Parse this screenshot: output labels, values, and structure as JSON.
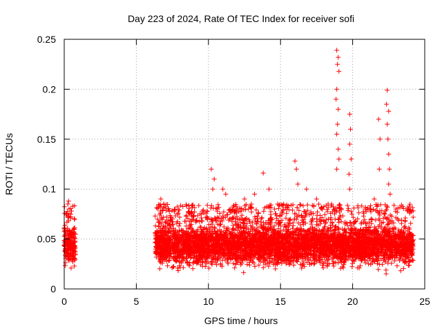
{
  "chart_data": {
    "type": "scatter",
    "title": "Day 223 of 2024, Rate Of TEC Index for receiver sofi",
    "xlabel": "GPS time / hours",
    "ylabel": "ROTI / TECUs",
    "xlim": [
      0,
      25
    ],
    "ylim": [
      0,
      0.25
    ],
    "xticks": [
      "0",
      "5",
      "10",
      "15",
      "20",
      "25"
    ],
    "yticks": [
      "0",
      "0.05",
      "0.1",
      "0.15",
      "0.2",
      "0.25"
    ],
    "grid": true,
    "marker": "+",
    "marker_color": "#ff0000",
    "series_name": "ROTI",
    "segments": [
      {
        "x": [
          0.0,
          0.8
        ],
        "y": [
          0.015,
          0.07
        ]
      },
      {
        "x": [
          6.3,
          24.2
        ],
        "y": [
          0.012,
          0.07
        ]
      }
    ],
    "peak_points": [
      [
        0.3,
        0.088
      ],
      [
        0.25,
        0.085
      ],
      [
        0.5,
        0.078
      ],
      [
        6.7,
        0.09
      ],
      [
        6.9,
        0.085
      ],
      [
        7.2,
        0.08
      ],
      [
        10.2,
        0.12
      ],
      [
        10.4,
        0.11
      ],
      [
        10.3,
        0.1
      ],
      [
        11.0,
        0.1
      ],
      [
        11.2,
        0.095
      ],
      [
        12.5,
        0.09
      ],
      [
        13.2,
        0.095
      ],
      [
        13.8,
        0.116
      ],
      [
        14.2,
        0.1
      ],
      [
        14.8,
        0.085
      ],
      [
        16.0,
        0.128
      ],
      [
        16.1,
        0.12
      ],
      [
        16.2,
        0.105
      ],
      [
        16.8,
        0.1
      ],
      [
        17.5,
        0.09
      ],
      [
        18.3,
        0.085
      ],
      [
        18.9,
        0.239
      ],
      [
        19.0,
        0.232
      ],
      [
        18.95,
        0.225
      ],
      [
        19.05,
        0.218
      ],
      [
        18.9,
        0.2
      ],
      [
        18.85,
        0.19
      ],
      [
        19.0,
        0.18
      ],
      [
        18.95,
        0.165
      ],
      [
        18.9,
        0.155
      ],
      [
        19.0,
        0.14
      ],
      [
        19.05,
        0.13
      ],
      [
        18.9,
        0.12
      ],
      [
        19.8,
        0.175
      ],
      [
        19.85,
        0.16
      ],
      [
        19.8,
        0.145
      ],
      [
        19.9,
        0.13
      ],
      [
        19.75,
        0.115
      ],
      [
        19.8,
        0.1
      ],
      [
        21.8,
        0.17
      ],
      [
        21.9,
        0.15
      ],
      [
        21.85,
        0.12
      ],
      [
        22.4,
        0.199
      ],
      [
        22.35,
        0.185
      ],
      [
        22.5,
        0.178
      ],
      [
        22.4,
        0.165
      ],
      [
        22.45,
        0.15
      ],
      [
        22.5,
        0.135
      ],
      [
        22.55,
        0.12
      ],
      [
        22.5,
        0.105
      ],
      [
        22.6,
        0.095
      ],
      [
        21.5,
        0.09
      ],
      [
        23.0,
        0.08
      ],
      [
        23.8,
        0.078
      ]
    ]
  }
}
